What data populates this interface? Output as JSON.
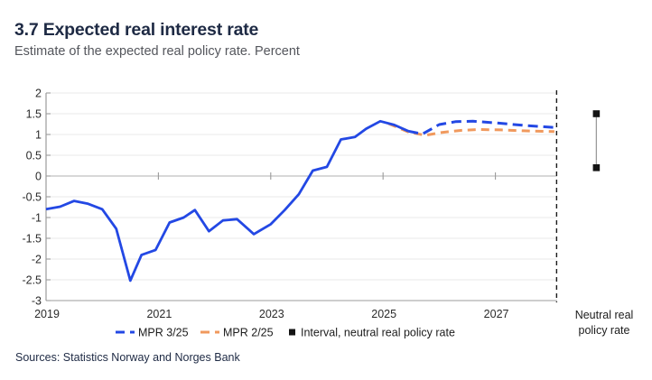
{
  "header": {
    "title": "3.7 Expected real interest rate",
    "subtitle": "Estimate of the expected real policy rate. Percent"
  },
  "footer": {
    "sources": "Sources: Statistics Norway and Norges Bank"
  },
  "colors": {
    "mpr_3_25": "#2348e4",
    "mpr_2_25": "#f0995d",
    "grid": "#e8e8e8",
    "zero_line": "#b0b0b0",
    "axis": "#9b9b9b",
    "tick_text": "#2a2a2a",
    "divider": "#1a1a1a",
    "interval_marker": "#141414",
    "interval_line": "#9b9b9b"
  },
  "chart_data": {
    "type": "line",
    "title": "3.7 Expected real interest rate",
    "subtitle": "Estimate of the expected real policy rate. Percent",
    "xlabel": "",
    "ylabel": "Percent",
    "xlim": [
      2019,
      2028.1
    ],
    "ylim": [
      -3,
      2
    ],
    "xticks": [
      2019,
      2021,
      2023,
      2025,
      2027
    ],
    "yticks": [
      "2",
      "1.5",
      "1",
      "0.5",
      "0",
      "-0.5",
      "-1",
      "-1.5",
      "-2",
      "-2.5",
      "-3"
    ],
    "ytick_values": [
      2,
      1.5,
      1,
      0.5,
      0,
      -0.5,
      -1,
      -1.5,
      -2,
      -2.5,
      -3
    ],
    "grid": true,
    "legend_position": "bottom",
    "projection_divider_x": 2028.09,
    "series": [
      {
        "name": "MPR 2/25",
        "segment": "projection",
        "style": "dashed",
        "color_key": "mpr_2_25",
        "points": [
          [
            2025.1,
            1.26
          ],
          [
            2025.45,
            1.06
          ],
          [
            2025.75,
            0.98
          ],
          [
            2026.05,
            1.05
          ],
          [
            2026.4,
            1.1
          ],
          [
            2026.7,
            1.12
          ],
          [
            2027.1,
            1.11
          ],
          [
            2027.5,
            1.09
          ],
          [
            2028.05,
            1.07
          ]
        ]
      },
      {
        "name": "MPR 3/25",
        "segment": "history",
        "style": "solid",
        "color_key": "mpr_3_25",
        "points": [
          [
            2019.0,
            -0.8
          ],
          [
            2019.25,
            -0.74
          ],
          [
            2019.5,
            -0.6
          ],
          [
            2019.75,
            -0.67
          ],
          [
            2020.0,
            -0.8
          ],
          [
            2020.25,
            -1.27
          ],
          [
            2020.5,
            -2.52
          ],
          [
            2020.7,
            -1.9
          ],
          [
            2020.95,
            -1.78
          ],
          [
            2021.2,
            -1.12
          ],
          [
            2021.45,
            -1.0
          ],
          [
            2021.65,
            -0.82
          ],
          [
            2021.9,
            -1.33
          ],
          [
            2022.15,
            -1.07
          ],
          [
            2022.4,
            -1.04
          ],
          [
            2022.7,
            -1.4
          ],
          [
            2023.0,
            -1.16
          ],
          [
            2023.25,
            -0.82
          ],
          [
            2023.5,
            -0.44
          ],
          [
            2023.75,
            0.13
          ],
          [
            2024.0,
            0.22
          ],
          [
            2024.25,
            0.88
          ],
          [
            2024.5,
            0.94
          ],
          [
            2024.7,
            1.14
          ],
          [
            2024.95,
            1.32
          ],
          [
            2025.2,
            1.23
          ],
          [
            2025.45,
            1.08
          ]
        ]
      },
      {
        "name": "MPR 3/25",
        "segment": "projection",
        "style": "dashed",
        "color_key": "mpr_3_25",
        "points": [
          [
            2025.45,
            1.08
          ],
          [
            2025.7,
            1.01
          ],
          [
            2026.0,
            1.24
          ],
          [
            2026.3,
            1.31
          ],
          [
            2026.6,
            1.32
          ],
          [
            2027.0,
            1.28
          ],
          [
            2027.5,
            1.22
          ],
          [
            2028.05,
            1.17
          ]
        ]
      }
    ],
    "neutral_interval": {
      "low": 0.2,
      "high": 1.5,
      "label": "Neutral real policy rate"
    },
    "legend": [
      {
        "label": "MPR 3/25",
        "marker": "dashes",
        "color_key": "mpr_3_25"
      },
      {
        "label": "MPR 2/25",
        "marker": "dashes",
        "color_key": "mpr_2_25"
      },
      {
        "label": "Interval, neutral real policy rate",
        "marker": "square",
        "color_key": "interval_marker"
      }
    ]
  }
}
